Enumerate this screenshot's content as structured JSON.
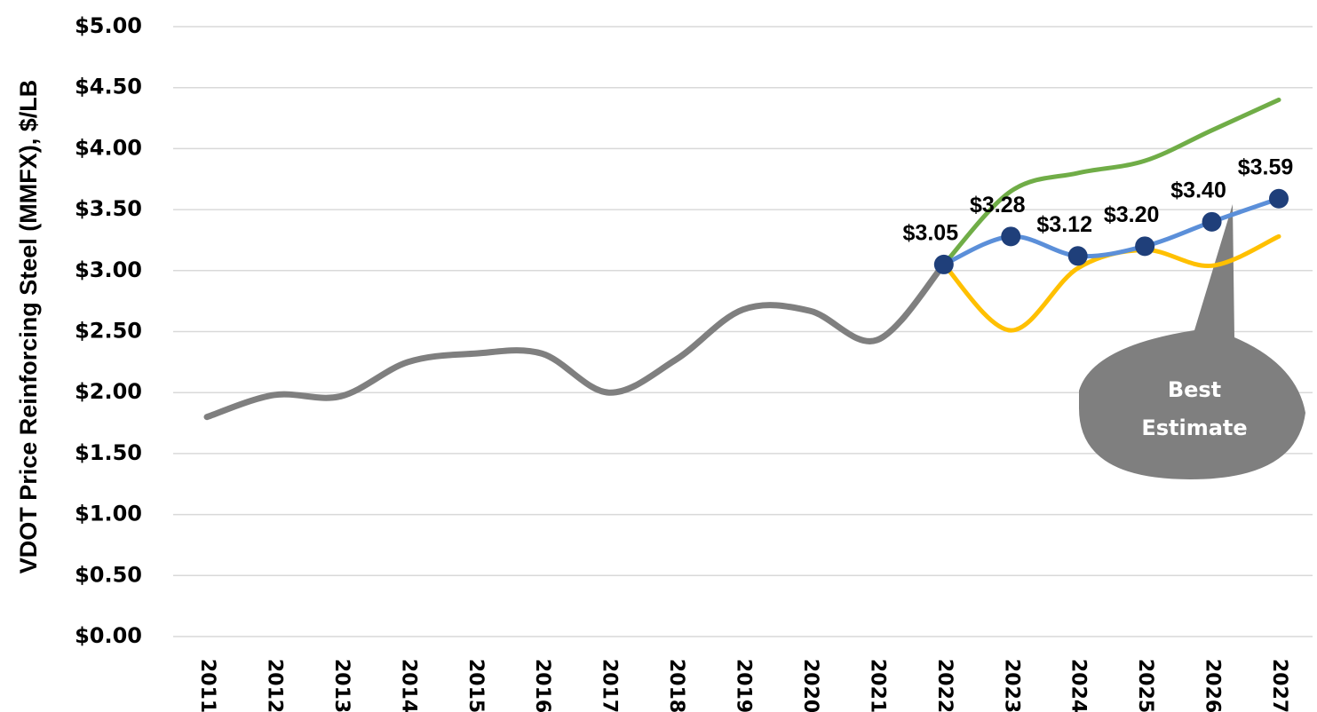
{
  "chart_data": {
    "type": "line",
    "y_label": "VDOT Price Reinforcing Steel (MMFX), $/LB",
    "categories": [
      "2011",
      "2012",
      "2013",
      "2014",
      "2015",
      "2016",
      "2017",
      "2018",
      "2019",
      "2020",
      "2021",
      "2022",
      "2023",
      "2024",
      "2025",
      "2026",
      "2027"
    ],
    "series": [
      {
        "color": "#7f7f7f",
        "values": [
          1.8,
          1.98,
          1.97,
          2.25,
          2.32,
          2.32,
          2.0,
          2.27,
          2.68,
          2.67,
          2.43,
          3.05,
          null,
          null,
          null,
          null,
          null
        ]
      },
      {
        "color": "#70ad47",
        "values": [
          null,
          null,
          null,
          null,
          null,
          null,
          null,
          null,
          null,
          null,
          null,
          3.05,
          3.65,
          3.8,
          3.9,
          4.15,
          4.4
        ]
      },
      {
        "color": "#ffc000",
        "values": [
          null,
          null,
          null,
          null,
          null,
          null,
          null,
          null,
          null,
          null,
          null,
          3.05,
          2.51,
          3.02,
          3.17,
          3.04,
          3.28
        ]
      },
      {
        "color": "#5b8fd9",
        "marker_color": "#1f3f7a",
        "values": [
          null,
          null,
          null,
          null,
          null,
          null,
          null,
          null,
          null,
          null,
          null,
          3.05,
          3.28,
          3.12,
          3.2,
          3.4,
          3.59
        ],
        "value_labels": [
          null,
          null,
          null,
          null,
          null,
          null,
          null,
          null,
          null,
          null,
          null,
          "$3.05",
          "$3.28",
          "$3.12",
          "$3.20",
          "$3.40",
          "$3.59"
        ]
      }
    ],
    "annotation": "Best Estimate",
    "ylim": [
      0,
      5
    ],
    "yticks": [
      {
        "value": 0,
        "label": "$0.00"
      },
      {
        "value": 0.5,
        "label": "$0.50"
      },
      {
        "value": 1,
        "label": "$1.00"
      },
      {
        "value": 1.5,
        "label": "$1.50"
      },
      {
        "value": 2,
        "label": "$2.00"
      },
      {
        "value": 2.5,
        "label": "$2.50"
      },
      {
        "value": 3,
        "label": "$3.00"
      },
      {
        "value": 3.5,
        "label": "$3.50"
      },
      {
        "value": 4,
        "label": "$4.00"
      },
      {
        "value": 4.5,
        "label": "$4.50"
      },
      {
        "value": 5,
        "label": "$5.00"
      }
    ],
    "grid": true
  }
}
